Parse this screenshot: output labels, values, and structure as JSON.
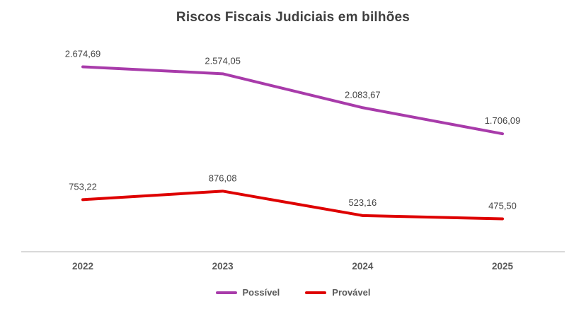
{
  "title": "Riscos Fiscais Judiciais em bilhões",
  "colors": {
    "possivel": "#A83BAA",
    "provavel": "#DE0000",
    "axis": "#D9D9D9",
    "label_text": "#444444",
    "category_text": "#595959",
    "title_text": "#3F3F3F"
  },
  "chart_data": {
    "type": "line",
    "title": "Riscos Fiscais Judiciais em bilhões",
    "categories": [
      "2022",
      "2023",
      "2024",
      "2025"
    ],
    "series": [
      {
        "name": "Possível",
        "color": "#A83BAA",
        "values": [
          2674.69,
          2574.05,
          2083.67,
          1706.09
        ],
        "labels": [
          "2.674,69",
          "2.574,05",
          "2.083,67",
          "1.706,09"
        ]
      },
      {
        "name": "Provável",
        "color": "#DE0000",
        "values": [
          753.22,
          876.08,
          523.16,
          475.5
        ],
        "labels": [
          "753,22",
          "876,08",
          "523,16",
          "475,50"
        ]
      }
    ],
    "xlabel": "",
    "ylabel": "",
    "ylim": [
      0,
      2700
    ],
    "grid": false,
    "legend_position": "bottom"
  }
}
